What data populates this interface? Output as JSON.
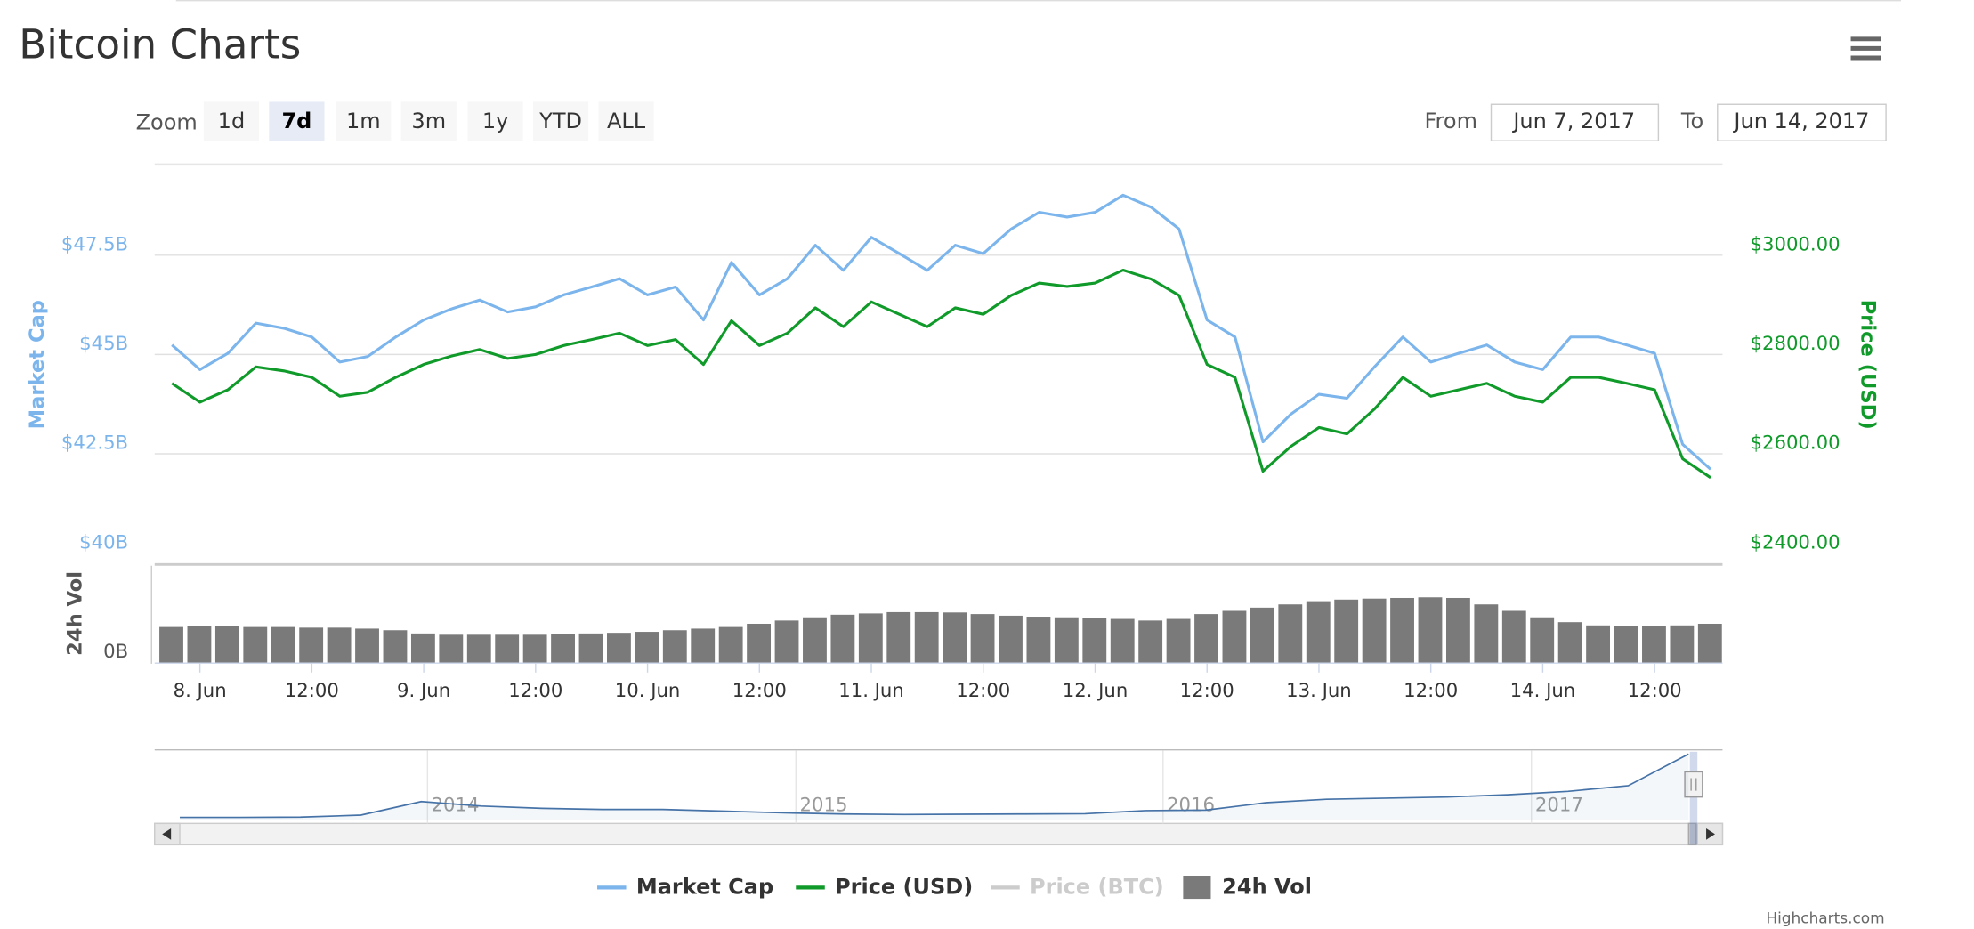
{
  "header": {
    "title": "Bitcoin Charts"
  },
  "zoom": {
    "label": "Zoom",
    "buttons": [
      "1d",
      "7d",
      "1m",
      "3m",
      "1y",
      "YTD",
      "ALL"
    ],
    "selected": "7d"
  },
  "range": {
    "from_label": "From",
    "from": "Jun 7, 2017",
    "to_label": "To",
    "to": "Jun 14, 2017"
  },
  "chart_data": {
    "type": "line",
    "y_label": "Market Cap",
    "y2_label": "Price (USD)",
    "vol_label": "24h Vol",
    "x": [
      "7. Jun 21:00",
      "8. Jun 00:00",
      "8. Jun 03:00",
      "8. Jun 06:00",
      "8. Jun 09:00",
      "8. Jun 12:00",
      "8. Jun 15:00",
      "8. Jun 18:00",
      "8. Jun 21:00",
      "9. Jun 00:00",
      "9. Jun 03:00",
      "9. Jun 06:00",
      "9. Jun 09:00",
      "9. Jun 12:00",
      "9. Jun 15:00",
      "9. Jun 18:00",
      "9. Jun 21:00",
      "10. Jun 00:00",
      "10. Jun 03:00",
      "10. Jun 06:00",
      "10. Jun 09:00",
      "10. Jun 12:00",
      "10. Jun 15:00",
      "10. Jun 18:00",
      "10. Jun 21:00",
      "11. Jun 00:00",
      "11. Jun 03:00",
      "11. Jun 06:00",
      "11. Jun 09:00",
      "11. Jun 12:00",
      "11. Jun 15:00",
      "11. Jun 18:00",
      "11. Jun 21:00",
      "12. Jun 00:00",
      "12. Jun 03:00",
      "12. Jun 06:00",
      "12. Jun 09:00",
      "12. Jun 12:00",
      "12. Jun 15:00",
      "12. Jun 18:00",
      "12. Jun 21:00",
      "13. Jun 00:00",
      "13. Jun 03:00",
      "13. Jun 06:00",
      "13. Jun 09:00",
      "13. Jun 12:00",
      "13. Jun 15:00",
      "13. Jun 18:00",
      "13. Jun 21:00",
      "14. Jun 00:00",
      "14. Jun 03:00",
      "14. Jun 06:00",
      "14. Jun 09:00",
      "14. Jun 12:00",
      "14. Jun 15:00",
      "14. Jun 18:00"
    ],
    "xticks": [
      {
        "value": "8. Jun 00:00",
        "label": "8. Jun"
      },
      {
        "value": "8. Jun 12:00",
        "label": "12:00"
      },
      {
        "value": "9. Jun 00:00",
        "label": "9. Jun"
      },
      {
        "value": "9. Jun 12:00",
        "label": "12:00"
      },
      {
        "value": "10. Jun 00:00",
        "label": "10. Jun"
      },
      {
        "value": "10. Jun 12:00",
        "label": "12:00"
      },
      {
        "value": "11. Jun 00:00",
        "label": "11. Jun"
      },
      {
        "value": "11. Jun 12:00",
        "label": "12:00"
      },
      {
        "value": "12. Jun 00:00",
        "label": "12. Jun"
      },
      {
        "value": "12. Jun 12:00",
        "label": "12:00"
      },
      {
        "value": "13. Jun 00:00",
        "label": "13. Jun"
      },
      {
        "value": "13. Jun 12:00",
        "label": "12:00"
      },
      {
        "value": "14. Jun 00:00",
        "label": "14. Jun"
      },
      {
        "value": "14. Jun 12:00",
        "label": "12:00"
      }
    ],
    "ylim": [
      40,
      50
    ],
    "yticks": [
      {
        "value": 40,
        "label": "$40B"
      },
      {
        "value": 42.5,
        "label": "$42.5B"
      },
      {
        "value": 45,
        "label": "$45B"
      },
      {
        "value": 47.5,
        "label": "$47.5B"
      }
    ],
    "y2lim": [
      2400,
      3200
    ],
    "y2ticks": [
      {
        "value": 2400,
        "label": "$2400.00"
      },
      {
        "value": 2600,
        "label": "$2600.00"
      },
      {
        "value": 2800,
        "label": "$2800.00"
      },
      {
        "value": 3000,
        "label": "$3000.00"
      }
    ],
    "vol_ylim": [
      0,
      3
    ],
    "vol_yticks": [
      {
        "value": 0,
        "label": "0B"
      }
    ],
    "grid": true,
    "series": [
      {
        "name": "Market Cap",
        "color": "#7cb5ec",
        "values": [
          45.24,
          44.62,
          45.03,
          45.79,
          45.66,
          45.44,
          44.81,
          44.95,
          45.44,
          45.87,
          46.15,
          46.37,
          46.07,
          46.2,
          46.5,
          46.7,
          46.91,
          46.5,
          46.7,
          45.87,
          47.32,
          46.5,
          46.91,
          47.75,
          47.12,
          47.95,
          47.54,
          47.12,
          47.75,
          47.54,
          48.16,
          48.58,
          48.46,
          48.58,
          49.01,
          48.71,
          48.16,
          45.87,
          45.44,
          42.8,
          43.5,
          44.0,
          43.9,
          44.7,
          45.44,
          44.81,
          45.03,
          45.24,
          44.81,
          44.62,
          45.44,
          45.44,
          45.24,
          45.03,
          42.74,
          42.11
        ]
      },
      {
        "name": "Price (USD)",
        "color": "#109a2a",
        "axis": "y2",
        "values": [
          2742,
          2704,
          2729,
          2775,
          2767,
          2754,
          2716,
          2724,
          2754,
          2780,
          2797,
          2810,
          2792,
          2800,
          2818,
          2830,
          2843,
          2818,
          2830,
          2780,
          2868,
          2818,
          2843,
          2894,
          2856,
          2906,
          2881,
          2856,
          2894,
          2881,
          2919,
          2944,
          2937,
          2944,
          2970,
          2952,
          2919,
          2780,
          2754,
          2565,
          2615,
          2653,
          2640,
          2691,
          2754,
          2716,
          2729,
          2742,
          2716,
          2704,
          2754,
          2754,
          2742,
          2729,
          2590,
          2552
        ]
      },
      {
        "name": "24h Vol",
        "color": "#7a7a7a",
        "axis": "vol",
        "type": "column",
        "values": [
          1.1,
          1.12,
          1.12,
          1.1,
          1.1,
          1.08,
          1.08,
          1.05,
          1.0,
          0.9,
          0.86,
          0.86,
          0.86,
          0.86,
          0.88,
          0.9,
          0.92,
          0.95,
          1.0,
          1.05,
          1.1,
          1.2,
          1.3,
          1.4,
          1.48,
          1.52,
          1.56,
          1.56,
          1.55,
          1.5,
          1.45,
          1.42,
          1.4,
          1.38,
          1.35,
          1.3,
          1.35,
          1.5,
          1.6,
          1.7,
          1.8,
          1.9,
          1.95,
          1.98,
          2.0,
          2.02,
          2.0,
          1.8,
          1.6,
          1.4,
          1.25,
          1.15,
          1.12,
          1.12,
          1.15,
          1.2
        ]
      }
    ],
    "hidden_series": [
      {
        "name": "Price (BTC)",
        "color": "#cccccc"
      }
    ]
  },
  "navigator": {
    "labels": [
      "2014",
      "2015",
      "2016",
      "2017"
    ],
    "ylim": [
      0,
      3000
    ],
    "values": [
      100,
      100,
      110,
      200,
      800,
      600,
      500,
      450,
      450,
      380,
      300,
      250,
      230,
      240,
      250,
      260,
      400,
      420,
      750,
      900,
      950,
      1000,
      1100,
      1250,
      1500,
      2900
    ]
  },
  "credit": "Highcharts.com"
}
